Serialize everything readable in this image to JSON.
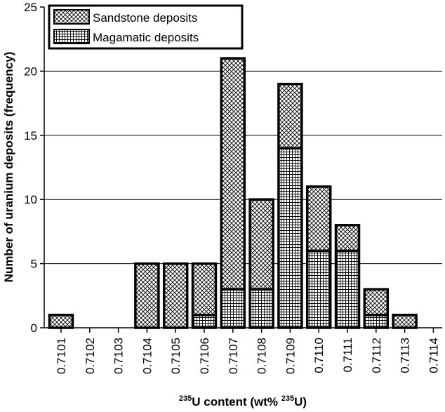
{
  "chart_data": {
    "type": "bar",
    "stacked": true,
    "categories": [
      "0.7101",
      "0.7102",
      "0.7103",
      "0.7104",
      "0.7105",
      "0.7106",
      "0.7107",
      "0.7108",
      "0.7109",
      "0.7110",
      "0.7111",
      "0.7112",
      "0.7113",
      "0.7114"
    ],
    "series": [
      {
        "name": "Magamatic deposits",
        "values": [
          0,
          0,
          0,
          0,
          0,
          1,
          3,
          3,
          14,
          6,
          6,
          1,
          0,
          0
        ],
        "pattern": "grid"
      },
      {
        "name": "Sandstone deposits",
        "values": [
          1,
          0,
          0,
          5,
          5,
          4,
          18,
          7,
          5,
          5,
          2,
          2,
          1,
          0
        ],
        "pattern": "crosshatch"
      }
    ],
    "y_ticks": [
      "0",
      "5",
      "10",
      "15",
      "20",
      "25"
    ],
    "ylim": [
      0,
      25
    ],
    "grid": "horizontal at 5, 10, 15, 20",
    "legend_position": "top-left",
    "ylabel": "Number of uranium deposits (frequency)",
    "xlabel": {
      "sup1": "235",
      "part1": "U content (wt% ",
      "sup2": "235",
      "part2": "U)"
    }
  }
}
